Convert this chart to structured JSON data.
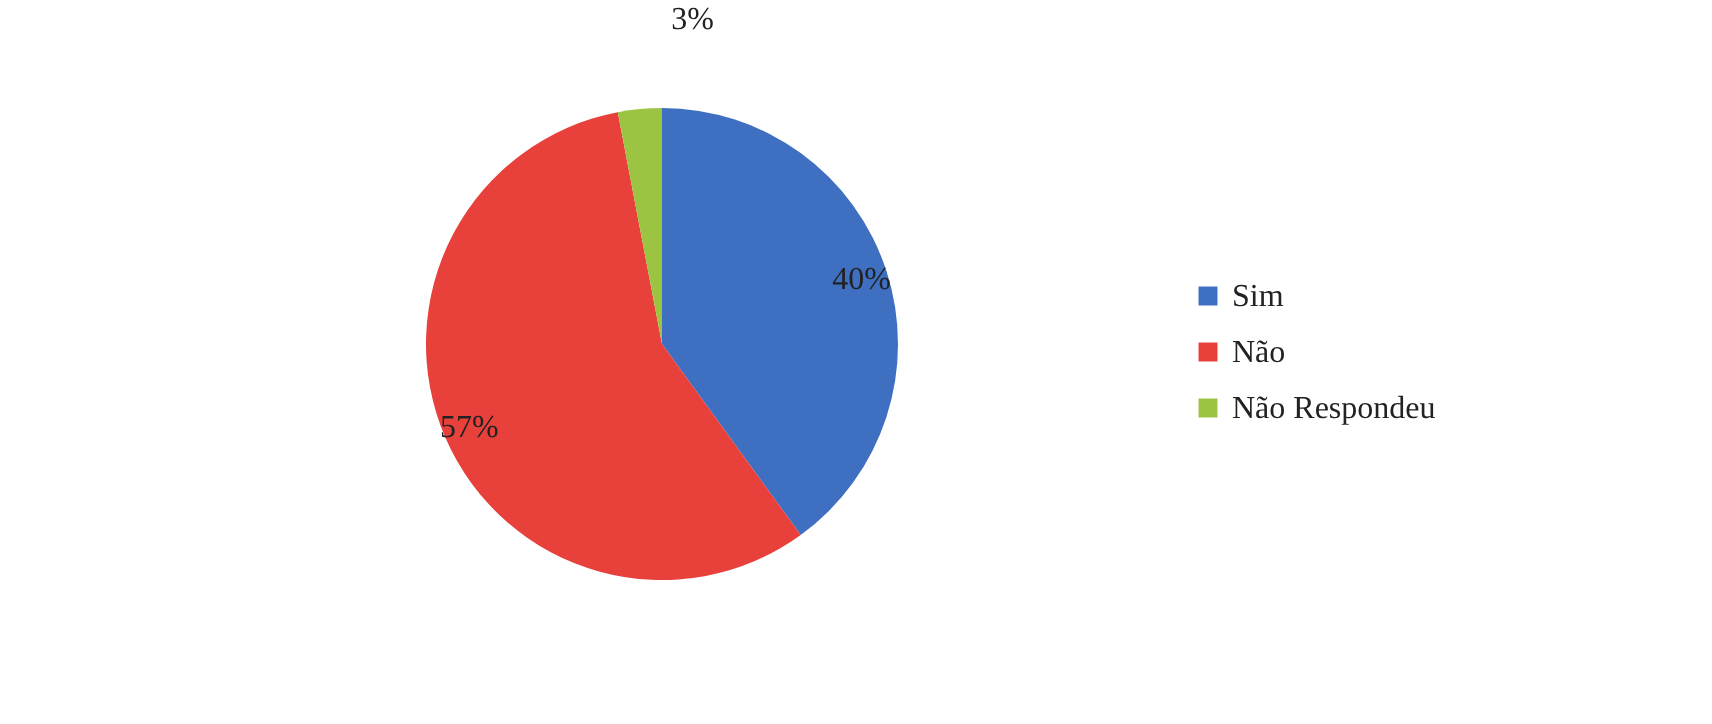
{
  "chart_data": {
    "type": "pie",
    "categories": [
      "Sim",
      "Não",
      "Não Respondeu"
    ],
    "values": [
      40,
      57,
      3
    ],
    "colors": [
      "#3f6fc0",
      "#e8403a",
      "#9cc443"
    ],
    "value_labels": [
      "40%",
      "57%",
      "3%"
    ],
    "legend": "right"
  }
}
